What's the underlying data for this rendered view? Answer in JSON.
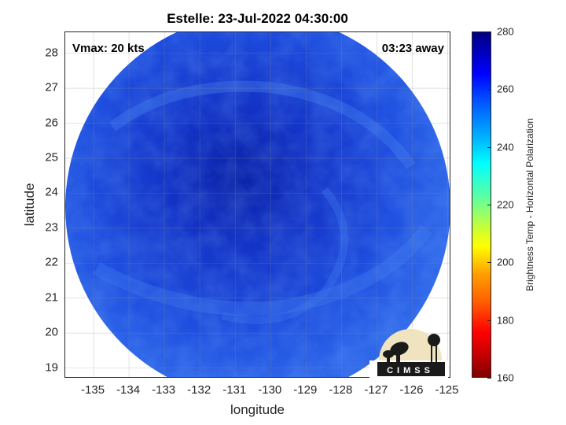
{
  "title": "Estelle: 23-Jul-2022 04:30:00",
  "vmax_label": "Vmax: 20 kts",
  "away_label": "03:23 away",
  "map": {
    "xlabel": "longitude",
    "ylabel": "latitude",
    "xlim": [
      -135.8,
      -124.9
    ],
    "ylim": [
      18.7,
      28.6
    ],
    "xticks": [
      "-135",
      "-134",
      "-133",
      "-132",
      "-131",
      "-130",
      "-129",
      "-128",
      "-127",
      "-126",
      "-125"
    ],
    "xtick_values": [
      -135,
      -134,
      -133,
      -132,
      -131,
      -130,
      -129,
      -128,
      -127,
      -126,
      -125
    ],
    "yticks": [
      "28",
      "27",
      "26",
      "25",
      "24",
      "23",
      "22",
      "21",
      "20",
      "19"
    ],
    "ytick_values": [
      28,
      27,
      26,
      25,
      24,
      23,
      22,
      21,
      20,
      19
    ],
    "grid": true
  },
  "colorbar": {
    "label": "Brightness Temp - Horizontal Polarization",
    "range": [
      160,
      280
    ],
    "ticks": [
      "280",
      "260",
      "240",
      "220",
      "200",
      "180",
      "160"
    ],
    "tick_values": [
      280,
      260,
      240,
      220,
      200,
      180,
      160
    ]
  },
  "logo_text": "CIMSS",
  "colors": {
    "swath_main": "#1f4fe0",
    "swath_core": "#0f2bbd",
    "swath_edge": "#3a7ff0"
  }
}
